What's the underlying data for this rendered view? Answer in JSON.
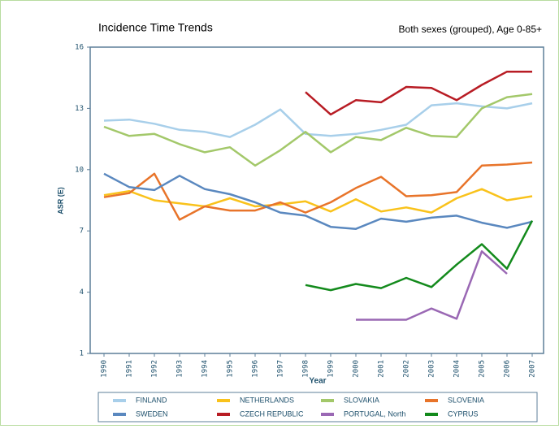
{
  "chart_data": {
    "type": "line",
    "title": "Incidence Time Trends",
    "subtitle": "Both sexes (grouped), Age 0-85+",
    "x_label": "Year",
    "y_label": "ASR (E)",
    "categories": [
      "1990",
      "1991",
      "1992",
      "1993",
      "1994",
      "1995",
      "1996",
      "1997",
      "1998",
      "1999",
      "2000",
      "2001",
      "2002",
      "2003",
      "2004",
      "2005",
      "2006",
      "2007"
    ],
    "ylim": [
      1,
      16
    ],
    "yticks": [
      1,
      4,
      7,
      10,
      13,
      16
    ],
    "grid": false,
    "series": [
      {
        "name": "FINLAND",
        "color": "#a8cfea",
        "values": [
          12.4,
          12.45,
          12.25,
          11.95,
          11.85,
          11.6,
          12.2,
          12.95,
          11.75,
          11.65,
          11.75,
          11.95,
          12.2,
          13.15,
          13.25,
          13.1,
          13.0,
          13.25
        ]
      },
      {
        "name": "NETHERLANDS",
        "color": "#f9c21b",
        "values": [
          8.75,
          8.95,
          8.5,
          8.35,
          8.2,
          8.6,
          8.2,
          8.3,
          8.45,
          7.95,
          8.55,
          7.95,
          8.15,
          7.9,
          8.6,
          9.05,
          8.5,
          8.7
        ]
      },
      {
        "name": "SLOVAKIA",
        "color": "#a3c86a",
        "values": [
          12.1,
          11.65,
          11.75,
          11.25,
          10.85,
          11.1,
          10.2,
          10.95,
          11.85,
          10.85,
          11.6,
          11.45,
          12.05,
          11.65,
          11.6,
          13.0,
          13.55,
          13.7
        ]
      },
      {
        "name": "SLOVENIA",
        "color": "#e8742a",
        "values": [
          8.65,
          8.85,
          9.8,
          7.55,
          8.2,
          8.0,
          8.0,
          8.4,
          7.9,
          8.4,
          9.1,
          9.65,
          8.7,
          8.75,
          8.9,
          10.2,
          10.25,
          10.35
        ]
      },
      {
        "name": "SWEDEN",
        "color": "#5a88bf",
        "values": [
          9.8,
          9.15,
          9.0,
          9.7,
          9.05,
          8.8,
          8.4,
          7.9,
          7.75,
          7.2,
          7.1,
          7.6,
          7.45,
          7.65,
          7.75,
          7.4,
          7.15,
          7.45
        ]
      },
      {
        "name": "CZECH REPUBLIC",
        "color": "#b81c24",
        "values": [
          null,
          null,
          null,
          null,
          null,
          null,
          null,
          null,
          13.8,
          12.7,
          13.4,
          13.3,
          14.05,
          14.0,
          13.4,
          14.15,
          14.8,
          14.8
        ]
      },
      {
        "name": "PORTUGAL, North",
        "color": "#9a68b4",
        "values": [
          null,
          null,
          null,
          null,
          null,
          null,
          null,
          null,
          null,
          null,
          2.65,
          2.65,
          2.65,
          3.2,
          2.7,
          6.0,
          4.9,
          null
        ]
      },
      {
        "name": "CYPRUS",
        "color": "#138a1c",
        "values": [
          null,
          null,
          null,
          null,
          null,
          null,
          null,
          null,
          4.35,
          4.1,
          4.4,
          4.2,
          4.7,
          4.25,
          5.35,
          6.35,
          5.15,
          7.5
        ]
      }
    ]
  }
}
